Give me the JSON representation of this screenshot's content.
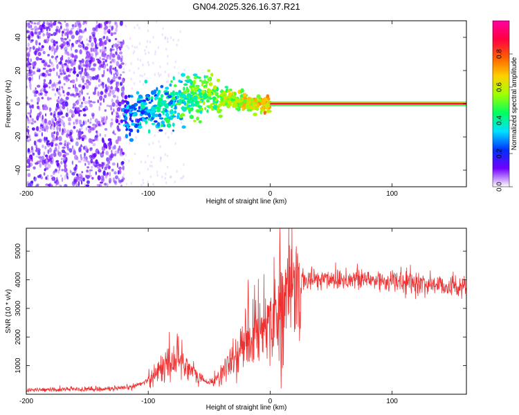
{
  "chart_data": [
    {
      "type": "heatmap",
      "title": "GN04.2025.326.16.37.R21",
      "xlabel": "Height of straight line (km)",
      "ylabel": "Frequency (Hz)",
      "xlim": [
        -200,
        161
      ],
      "ylim": [
        -50,
        50
      ],
      "xticks": [
        -200,
        -100,
        0,
        100
      ],
      "yticks": [
        -40,
        -20,
        0,
        20,
        40
      ],
      "colorbar": {
        "label": "Normalized spectral amplitude",
        "range": [
          0,
          1
        ],
        "ticks": [
          "0.0",
          "0.2",
          "0.4",
          "0.6",
          "0.8"
        ],
        "colors": [
          "#ffffff",
          "#7000ff",
          "#0030ff",
          "#00e0ff",
          "#00ff60",
          "#a0ff00",
          "#ffd000",
          "#ff6000",
          "#ff0040",
          "#ff00a0"
        ]
      },
      "features": {
        "noise_region_km": [
          -200,
          -120
        ],
        "drifting_segment": [
          {
            "x": -120,
            "freq": -8
          },
          {
            "x": -100,
            "freq": -3
          },
          {
            "x": -80,
            "freq": 0
          },
          {
            "x": -60,
            "freq": 4
          },
          {
            "x": -45,
            "freq": 6
          },
          {
            "x": -30,
            "freq": 2
          },
          {
            "x": -15,
            "freq": 0
          },
          {
            "x": 0,
            "freq": 0
          }
        ],
        "steady_line": {
          "x_start": 0,
          "x_end": 161,
          "freq": 0,
          "amplitude": 0.9
        }
      }
    },
    {
      "type": "line",
      "xlabel": "Height of straight line (km)",
      "ylabel": "SNR (10 * v/v)",
      "xlim": [
        -200,
        161
      ],
      "ylim": [
        0,
        5800
      ],
      "xticks": [
        -200,
        -100,
        0,
        100
      ],
      "yticks": [
        1000,
        2000,
        3000,
        4000,
        5000
      ],
      "series": [
        {
          "name": "SNR",
          "color": "#ee3030",
          "envelope": [
            {
              "x": -200,
              "y": 150
            },
            {
              "x": -150,
              "y": 180
            },
            {
              "x": -120,
              "y": 200
            },
            {
              "x": -110,
              "y": 300
            },
            {
              "x": -100,
              "y": 500
            },
            {
              "x": -90,
              "y": 900
            },
            {
              "x": -80,
              "y": 1200
            },
            {
              "x": -75,
              "y": 1300
            },
            {
              "x": -70,
              "y": 1100
            },
            {
              "x": -60,
              "y": 600
            },
            {
              "x": -50,
              "y": 400
            },
            {
              "x": -40,
              "y": 700
            },
            {
              "x": -30,
              "y": 1200
            },
            {
              "x": -20,
              "y": 1800
            },
            {
              "x": -10,
              "y": 2300
            },
            {
              "x": 0,
              "y": 2700
            },
            {
              "x": 10,
              "y": 3200
            },
            {
              "x": 20,
              "y": 3700
            },
            {
              "x": 30,
              "y": 4000
            },
            {
              "x": 50,
              "y": 4050
            },
            {
              "x": 80,
              "y": 4000
            },
            {
              "x": 100,
              "y": 3950
            },
            {
              "x": 130,
              "y": 3850
            },
            {
              "x": 161,
              "y": 3750
            }
          ],
          "spikes": [
            {
              "x": -18,
              "y": 4000
            },
            {
              "x": 8,
              "y": 5800
            },
            {
              "x": 9,
              "y": 200
            }
          ]
        }
      ]
    }
  ]
}
